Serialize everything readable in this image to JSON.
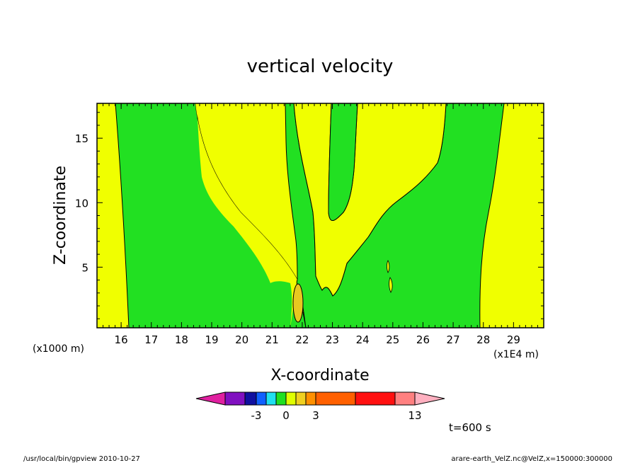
{
  "chart_data": {
    "type": "heatmap",
    "title": "vertical velocity",
    "xlabel": "X-coordinate",
    "ylabel": "Z-coordinate",
    "x_units_left": "(x1000 m)",
    "x_units_right": "(x1E4 m)",
    "x_ticks": [
      "16",
      "17",
      "18",
      "19",
      "20",
      "21",
      "22",
      "23",
      "24",
      "25",
      "26",
      "27",
      "28",
      "29"
    ],
    "y_ticks": [
      "5",
      "10",
      "15"
    ],
    "xlim": [
      15.2,
      30.0
    ],
    "ylim": [
      0.3,
      17.7
    ],
    "time_label": "t=600 s",
    "colorbar": {
      "labels": [
        {
          "text": "-3",
          "level": -3
        },
        {
          "text": "0",
          "level": 0
        },
        {
          "text": "3",
          "level": 3
        },
        {
          "text": "13",
          "level": 13
        }
      ],
      "colors": [
        "#e020a0",
        "#8010c0",
        "#1010a0",
        "#1060ff",
        "#20e0f0",
        "#20e020",
        "#e0ff00",
        "#f0d020",
        "#ff9000",
        "#ff6000",
        "#ff1010",
        "#ff8080",
        "#ffb0c0"
      ]
    },
    "fill_colors": {
      "weak_positive": "#f0ff00",
      "weak_negative": "#22e022",
      "moderate_positive": "#e8c820"
    }
  },
  "footer": {
    "left": "/usr/local/bin/gpview  2010-10-27",
    "right": "arare-earth_VelZ.nc@VelZ,x=150000:300000"
  }
}
